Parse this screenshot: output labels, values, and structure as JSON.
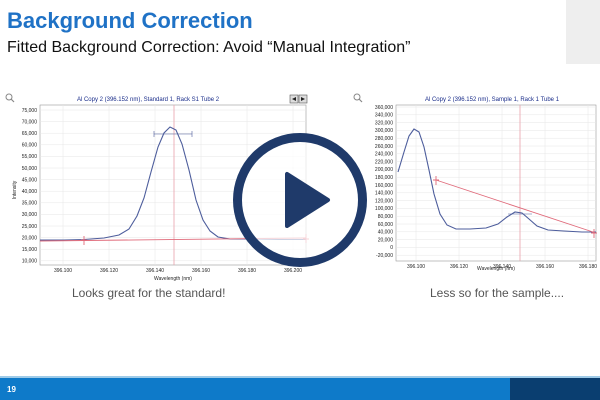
{
  "slide": {
    "title": "Background Correction",
    "subtitle": "Fitted Background Correction: Avoid “Manual Integration”",
    "page_number": "19"
  },
  "left_panel": {
    "title": "Al Copy 2 (396.152 nm), Standard 1, Rack S1 Tube 2",
    "caption": "Looks great for the standard!",
    "ylabel": "Intensity",
    "xlabel": "Wavelength (nm)",
    "y_ticks": [
      "75,000",
      "70,000",
      "65,000",
      "60,000",
      "55,000",
      "50,000",
      "45,000",
      "40,000",
      "35,000",
      "30,000",
      "25,000",
      "20,000",
      "15,000",
      "10,000"
    ],
    "x_ticks": [
      "396.100",
      "396.120",
      "396.140",
      "396.160",
      "396.180",
      "396.200"
    ]
  },
  "right_panel": {
    "title": "Al Copy 2 (396.152 nm), Sample 1, Rack 1 Tube 1",
    "caption": "Less so for the sample....",
    "xlabel": "Wavelength (nm)",
    "y_ticks": [
      "360,000",
      "340,000",
      "320,000",
      "300,000",
      "280,000",
      "260,000",
      "240,000",
      "220,000",
      "200,000",
      "180,000",
      "160,000",
      "140,000",
      "120,000",
      "100,000",
      "80,000",
      "60,000",
      "40,000",
      "20,000",
      "0",
      "-20,000"
    ],
    "x_ticks": [
      "396.100",
      "396.120",
      "396.140",
      "396.160",
      "396.180"
    ]
  },
  "icons": {
    "play": "play-icon",
    "zoom": "magnifier-icon",
    "nav_prev": "arrow-left-icon",
    "nav_next": "arrow-right-icon"
  },
  "colors": {
    "accent": "#1f72c6",
    "curve": "#4d5d9c",
    "fit_line": "#e06a7a",
    "play_ring": "#1f3a6a",
    "footer": "#0e7ac9",
    "footer_dark": "#0a3e70"
  }
}
